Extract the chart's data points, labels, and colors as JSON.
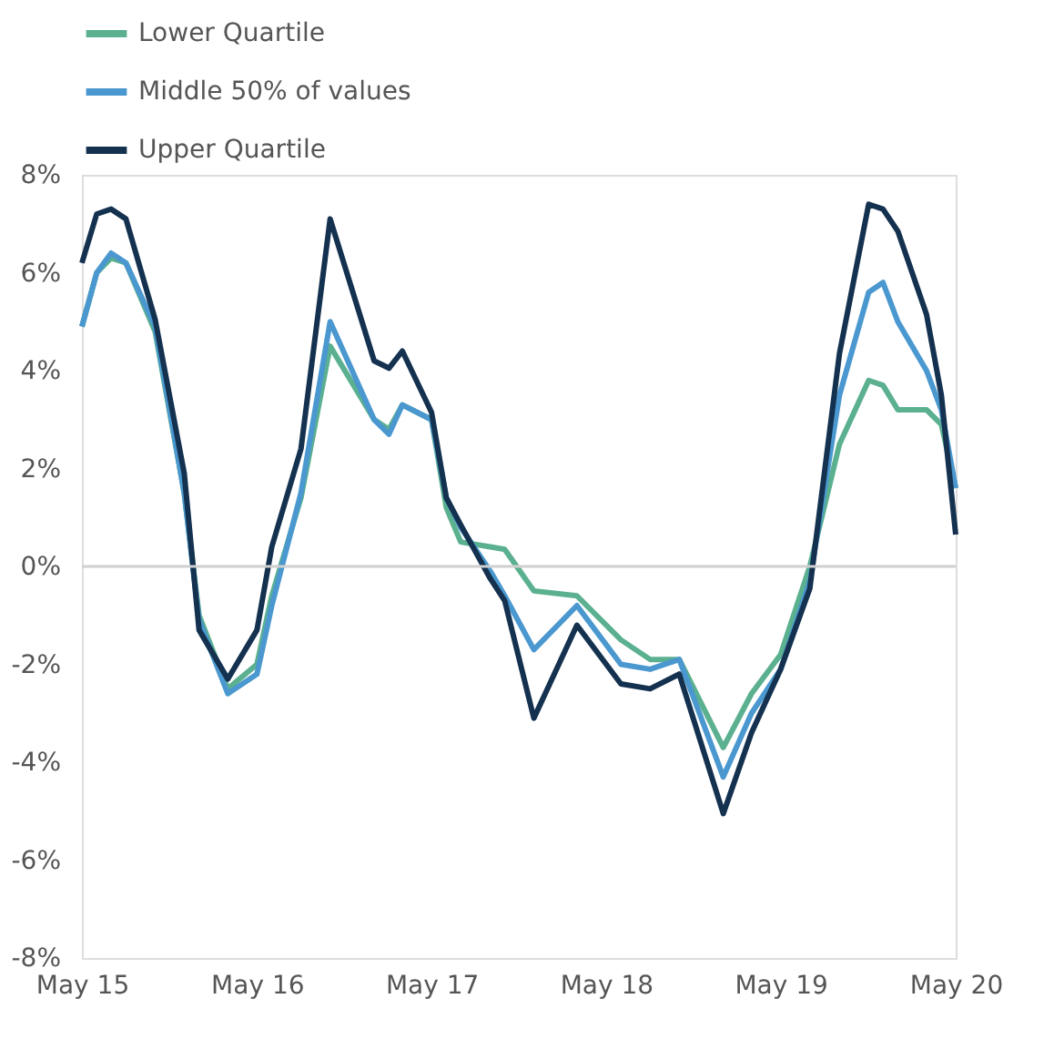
{
  "chart_data": {
    "type": "line",
    "x": [
      "2015-05",
      "2015-06",
      "2015-07",
      "2015-08",
      "2015-10",
      "2015-12",
      "2016-01",
      "2016-03",
      "2016-05",
      "2016-06",
      "2016-08",
      "2016-10",
      "2017-01",
      "2017-02",
      "2017-03",
      "2017-05",
      "2017-06",
      "2017-07",
      "2017-09",
      "2017-10",
      "2017-12",
      "2018-03",
      "2018-06",
      "2018-08",
      "2018-10",
      "2019-01",
      "2019-03",
      "2019-05",
      "2019-07",
      "2019-09",
      "2019-11",
      "2019-12",
      "2020-01",
      "2020-03",
      "2020-04",
      "2020-05"
    ],
    "series": [
      {
        "name": "Lower Quartile",
        "color": "#5bb08f",
        "values": [
          4.9,
          6.0,
          6.3,
          6.2,
          4.8,
          1.5,
          -1.0,
          -2.5,
          -2.0,
          -0.6,
          1.4,
          4.5,
          3.0,
          2.8,
          3.3,
          3.0,
          1.2,
          0.5,
          0.4,
          0.35,
          -0.5,
          -0.6,
          -1.5,
          -1.9,
          -1.9,
          -3.7,
          -2.6,
          -1.8,
          0.0,
          2.5,
          3.8,
          3.7,
          3.2,
          3.2,
          2.9,
          1.6
        ]
      },
      {
        "name": "Middle 50% of values",
        "color": "#4a98cf",
        "values": [
          4.9,
          6.0,
          6.4,
          6.2,
          4.9,
          1.5,
          -1.1,
          -2.6,
          -2.2,
          -0.8,
          1.5,
          5.0,
          3.0,
          2.7,
          3.3,
          3.0,
          1.4,
          0.8,
          -0.1,
          -0.6,
          -1.7,
          -0.8,
          -2.0,
          -2.1,
          -1.9,
          -4.3,
          -3.0,
          -2.1,
          -0.3,
          3.5,
          5.6,
          5.8,
          5.0,
          4.0,
          3.2,
          1.6
        ]
      },
      {
        "name": "Upper Quartile",
        "color": "#14314f",
        "values": [
          6.2,
          7.2,
          7.3,
          7.1,
          5.05,
          1.9,
          -1.3,
          -2.3,
          -1.3,
          0.4,
          2.4,
          7.1,
          4.2,
          4.05,
          4.4,
          3.15,
          1.4,
          0.85,
          -0.25,
          -0.7,
          -3.1,
          -1.2,
          -2.4,
          -2.5,
          -2.2,
          -5.05,
          -3.4,
          -2.1,
          -0.45,
          4.35,
          7.4,
          7.3,
          6.85,
          5.15,
          3.5,
          0.65
        ]
      }
    ],
    "xlim": [
      "2015-05",
      "2020-05"
    ],
    "xticks": [
      {
        "value": "2015-05",
        "label": "May 15"
      },
      {
        "value": "2016-05",
        "label": "May 16"
      },
      {
        "value": "2017-05",
        "label": "May 17"
      },
      {
        "value": "2018-05",
        "label": "May 18"
      },
      {
        "value": "2019-05",
        "label": "May 19"
      },
      {
        "value": "2020-05",
        "label": "May 20"
      }
    ],
    "ylim": [
      -8,
      8
    ],
    "yticks": [
      {
        "value": -8,
        "label": "-8%"
      },
      {
        "value": -6,
        "label": "-6%"
      },
      {
        "value": -4,
        "label": "-4%"
      },
      {
        "value": -2,
        "label": "-2%"
      },
      {
        "value": 0,
        "label": "0%"
      },
      {
        "value": 2,
        "label": "2%"
      },
      {
        "value": 4,
        "label": "4%"
      },
      {
        "value": 6,
        "label": "6%"
      },
      {
        "value": 8,
        "label": "8%"
      }
    ],
    "ref_lines": [
      {
        "axis": "y",
        "value": 0,
        "color": "#d0d0d0"
      }
    ],
    "legend": "top",
    "grid": false,
    "line_style": "solid"
  }
}
